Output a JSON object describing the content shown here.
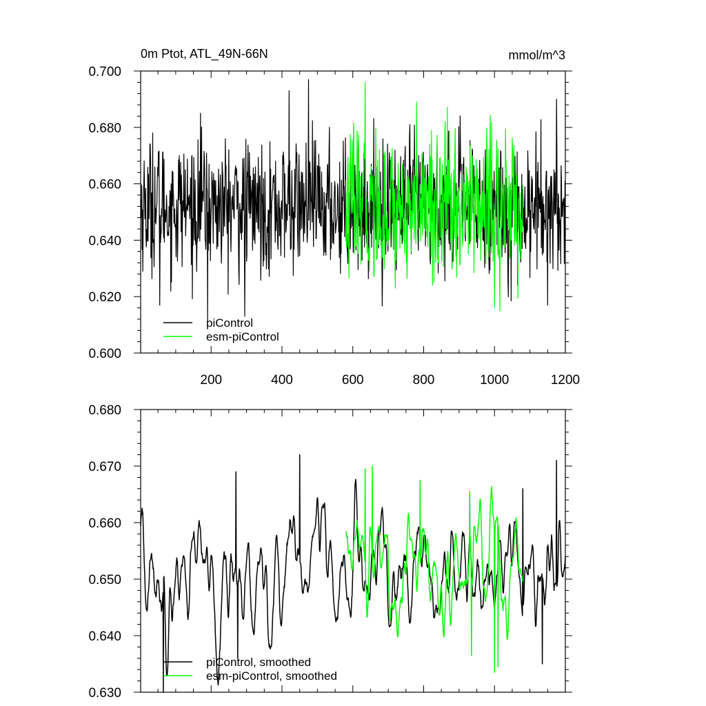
{
  "chart_data": [
    {
      "type": "line",
      "title": "0m Ptot, ATL_49N-66N",
      "units": "mmol/m^3",
      "xlabel": "",
      "ylabel": "",
      "xlim": [
        1,
        1200
      ],
      "ylim": [
        0.6,
        0.7
      ],
      "x_ticks": [
        200,
        400,
        600,
        800,
        1000,
        1200
      ],
      "x_tick_labels": [
        "200",
        "400",
        "600",
        "800",
        "1000",
        "1200"
      ],
      "y_ticks": [
        0.6,
        0.62,
        0.64,
        0.66,
        0.68,
        0.7
      ],
      "y_tick_labels": [
        "0.600",
        "0.620",
        "0.640",
        "0.660",
        "0.680",
        "0.700"
      ],
      "legend_position": "bottom-left",
      "series": [
        {
          "name": "piControl",
          "color": "#000000",
          "x_range": [
            1,
            1200
          ],
          "mean": 0.652,
          "spread": 0.011,
          "min": 0.611,
          "max": 0.697,
          "extremes": [
            [
              35,
              0.678
            ],
            [
              55,
              0.617
            ],
            [
              110,
              0.67
            ],
            [
              170,
              0.685
            ],
            [
              190,
              0.611
            ],
            [
              295,
              0.613
            ],
            [
              420,
              0.693
            ],
            [
              475,
              0.697
            ],
            [
              1175,
              0.69
            ],
            [
              1065,
              0.624
            ],
            [
              1150,
              0.617
            ]
          ]
        },
        {
          "name": "esm-piControl",
          "color": "#00ff00",
          "x_range": [
            580,
            1080
          ],
          "mean": 0.652,
          "spread": 0.012,
          "min": 0.615,
          "max": 0.696,
          "extremes": [
            [
              635,
              0.696
            ],
            [
              780,
              0.689
            ],
            [
              1000,
              0.616
            ],
            [
              1015,
              0.615
            ],
            [
              720,
              0.623
            ],
            [
              825,
              0.624
            ]
          ]
        }
      ]
    },
    {
      "type": "line",
      "title": "",
      "xlabel": "",
      "ylabel": "",
      "xlim": [
        1,
        1200
      ],
      "ylim": [
        0.63,
        0.68
      ],
      "x_ticks": [
        200,
        400,
        600,
        800,
        1000,
        1200
      ],
      "x_tick_labels": [],
      "y_ticks": [
        0.63,
        0.64,
        0.65,
        0.66,
        0.67,
        0.68
      ],
      "y_tick_labels": [
        "0.630",
        "0.640",
        "0.650",
        "0.660",
        "0.670",
        "0.680"
      ],
      "legend_position": "bottom-left",
      "series": [
        {
          "name": "piControl, smoothed",
          "color": "#000000",
          "x_range": [
            1,
            1200
          ],
          "mean": 0.651,
          "spread": 0.0055,
          "min": 0.63,
          "max": 0.672,
          "extremes": [
            [
              65,
              0.63
            ],
            [
              275,
              0.6355
            ],
            [
              275,
              0.636
            ],
            [
              270,
              0.669
            ],
            [
              450,
              0.672
            ],
            [
              1135,
              0.635
            ],
            [
              1175,
              0.671
            ],
            [
              1080,
              0.666
            ]
          ]
        },
        {
          "name": "esm-piControl, smoothed",
          "color": "#00ff00",
          "x_range": [
            580,
            1080
          ],
          "mean": 0.6525,
          "spread": 0.0055,
          "min": 0.6335,
          "max": 0.6705,
          "extremes": [
            [
              635,
              0.6695
            ],
            [
              655,
              0.67
            ],
            [
              790,
              0.6675
            ],
            [
              1000,
              0.6335
            ],
            [
              1010,
              0.6345
            ],
            [
              930,
              0.6655
            ],
            [
              935,
              0.6365
            ]
          ]
        }
      ]
    }
  ]
}
